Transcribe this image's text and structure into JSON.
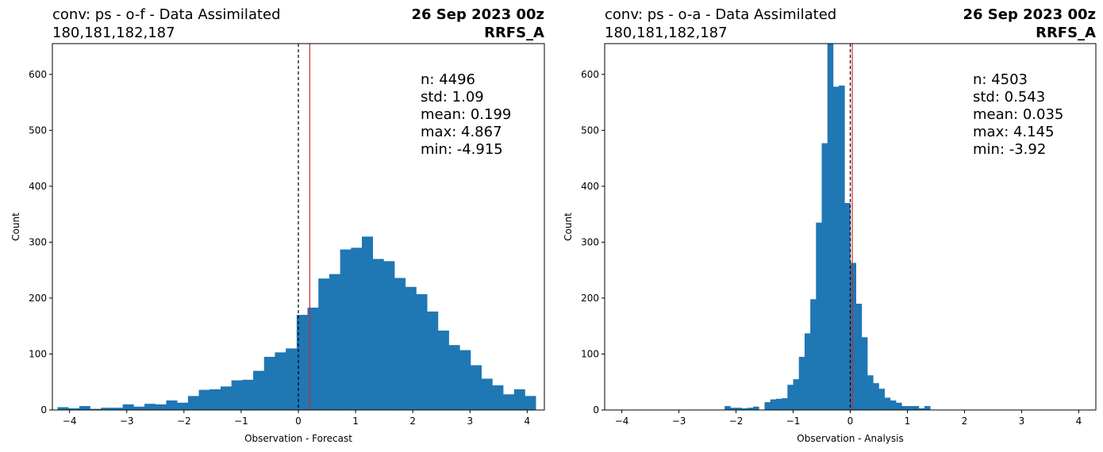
{
  "chart_data": [
    {
      "type": "bar",
      "title_left": [
        "conv: ps - o-f - Data Assimilated",
        "180,181,182,187"
      ],
      "title_right": [
        "26 Sep 2023 00z",
        "RRFS_A"
      ],
      "xlabel": "Observation - Forecast",
      "ylabel": "Count",
      "xlim": [
        -4.3,
        4.3
      ],
      "ylim": [
        0,
        655
      ],
      "xticks": [
        -4,
        -3,
        -2,
        -1,
        0,
        1,
        2,
        3,
        4
      ],
      "yticks": [
        0,
        100,
        200,
        300,
        400,
        500,
        600
      ],
      "bin_width": 0.19,
      "bins": [
        {
          "x0": -4.21,
          "value": 5
        },
        {
          "x0": -4.02,
          "value": 3
        },
        {
          "x0": -3.83,
          "value": 7
        },
        {
          "x0": -3.64,
          "value": 2
        },
        {
          "x0": -3.45,
          "value": 4
        },
        {
          "x0": -3.26,
          "value": 4
        },
        {
          "x0": -3.07,
          "value": 10
        },
        {
          "x0": -2.88,
          "value": 6
        },
        {
          "x0": -2.69,
          "value": 11
        },
        {
          "x0": -2.5,
          "value": 10
        },
        {
          "x0": -2.31,
          "value": 17
        },
        {
          "x0": -2.12,
          "value": 13
        },
        {
          "x0": -1.93,
          "value": 25
        },
        {
          "x0": -1.74,
          "value": 36
        },
        {
          "x0": -1.55,
          "value": 37
        },
        {
          "x0": -1.36,
          "value": 42
        },
        {
          "x0": -1.17,
          "value": 53
        },
        {
          "x0": -0.98,
          "value": 54
        },
        {
          "x0": -0.79,
          "value": 70
        },
        {
          "x0": -0.6,
          "value": 95
        },
        {
          "x0": -0.41,
          "value": 103
        },
        {
          "x0": -0.22,
          "value": 110
        },
        {
          "x0": -0.03,
          "value": 170
        },
        {
          "x0": 0.16,
          "value": 183
        },
        {
          "x0": 0.35,
          "value": 235
        },
        {
          "x0": 0.54,
          "value": 243
        },
        {
          "x0": 0.73,
          "value": 287
        },
        {
          "x0": 0.92,
          "value": 290
        },
        {
          "x0": 1.11,
          "value": 310
        },
        {
          "x0": 1.3,
          "value": 270
        },
        {
          "x0": 1.49,
          "value": 266
        },
        {
          "x0": 1.68,
          "value": 236
        },
        {
          "x0": 1.87,
          "value": 220
        },
        {
          "x0": 2.06,
          "value": 207
        },
        {
          "x0": 2.25,
          "value": 176
        },
        {
          "x0": 2.44,
          "value": 142
        },
        {
          "x0": 2.63,
          "value": 116
        },
        {
          "x0": 2.82,
          "value": 107
        },
        {
          "x0": 3.01,
          "value": 80
        },
        {
          "x0": 3.2,
          "value": 56
        },
        {
          "x0": 3.39,
          "value": 44
        },
        {
          "x0": 3.58,
          "value": 28
        },
        {
          "x0": 3.77,
          "value": 37
        },
        {
          "x0": 3.96,
          "value": 25
        }
      ],
      "bins_note": "",
      "mean_line": 0.199,
      "zero_line": 0,
      "stats": [
        "n: 4496",
        "std: 1.09",
        "mean: 0.199",
        "max: 4.867",
        "min: -4.915"
      ],
      "bar_color": "#1f77b4",
      "mean_line_color": "#d62728",
      "zero_line_color": "#000000"
    },
    {
      "type": "bar",
      "title_left": [
        "conv: ps - o-a - Data Assimilated",
        "180,181,182,187"
      ],
      "title_right": [
        "26 Sep 2023 00z",
        "RRFS_A"
      ],
      "xlabel": "Observation - Analysis",
      "ylabel": "Count",
      "xlim": [
        -4.3,
        4.3
      ],
      "ylim": [
        0,
        655
      ],
      "xticks": [
        -4,
        -3,
        -2,
        -1,
        0,
        1,
        2,
        3,
        4
      ],
      "yticks": [
        0,
        100,
        200,
        300,
        400,
        500,
        600
      ],
      "bin_width": 0.1,
      "bins": [
        {
          "x0": -2.2,
          "value": 7
        },
        {
          "x0": -2.1,
          "value": 4
        },
        {
          "x0": -2.0,
          "value": 4
        },
        {
          "x0": -1.9,
          "value": 3
        },
        {
          "x0": -1.8,
          "value": 4
        },
        {
          "x0": -1.7,
          "value": 6
        },
        {
          "x0": -1.5,
          "value": 14
        },
        {
          "x0": -1.4,
          "value": 19
        },
        {
          "x0": -1.3,
          "value": 20
        },
        {
          "x0": -1.2,
          "value": 21
        },
        {
          "x0": -1.1,
          "value": 45
        },
        {
          "x0": -1.0,
          "value": 55
        },
        {
          "x0": -0.9,
          "value": 95
        },
        {
          "x0": -0.8,
          "value": 137
        },
        {
          "x0": -0.7,
          "value": 198
        },
        {
          "x0": -0.6,
          "value": 335
        },
        {
          "x0": -0.5,
          "value": 477
        },
        {
          "x0": -0.4,
          "value": 660
        },
        {
          "x0": -0.3,
          "value": 578
        },
        {
          "x0": -0.2,
          "value": 580
        },
        {
          "x0": -0.1,
          "value": 370
        },
        {
          "x0": 0.0,
          "value": 263
        },
        {
          "x0": 0.1,
          "value": 190
        },
        {
          "x0": 0.2,
          "value": 130
        },
        {
          "x0": 0.3,
          "value": 62
        },
        {
          "x0": 0.4,
          "value": 48
        },
        {
          "x0": 0.5,
          "value": 38
        },
        {
          "x0": 0.6,
          "value": 22
        },
        {
          "x0": 0.7,
          "value": 17
        },
        {
          "x0": 0.8,
          "value": 13
        },
        {
          "x0": 0.9,
          "value": 7
        },
        {
          "x0": 1.0,
          "value": 7
        },
        {
          "x0": 1.1,
          "value": 7
        },
        {
          "x0": 1.2,
          "value": 3
        },
        {
          "x0": 1.3,
          "value": 7
        }
      ],
      "mean_line": 0.035,
      "zero_line": 0,
      "stats": [
        "n: 4503",
        "std: 0.543",
        "mean: 0.035",
        "max: 4.145",
        "min: -3.92"
      ],
      "bar_color": "#1f77b4",
      "mean_line_color": "#d62728",
      "zero_line_color": "#000000"
    }
  ]
}
